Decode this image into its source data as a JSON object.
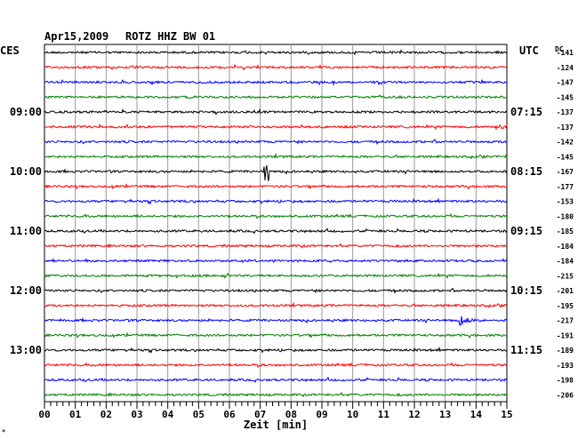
{
  "header": {
    "date": "Apr15,2009",
    "station": "ROTZ HHZ BW 01",
    "left_tz": "CES",
    "right_tz": "UTC",
    "dc_label": "DC"
  },
  "chart_data": {
    "type": "line",
    "title": "Apr15,2009  ROTZ HHZ BW 01",
    "xlabel": "Zeit [min]",
    "xlim": [
      0,
      15
    ],
    "x_ticks": [
      "00",
      "01",
      "02",
      "03",
      "04",
      "05",
      "06",
      "07",
      "08",
      "09",
      "10",
      "11",
      "12",
      "13",
      "14",
      "15"
    ],
    "trace_colors": [
      "#000000",
      "#ff0000",
      "#0000ff",
      "#008000"
    ],
    "left_time_labels": [
      {
        "trace": 4,
        "label": "09:00"
      },
      {
        "trace": 8,
        "label": "10:00"
      },
      {
        "trace": 12,
        "label": "11:00"
      },
      {
        "trace": 16,
        "label": "12:00"
      },
      {
        "trace": 20,
        "label": "13:00"
      }
    ],
    "right_time_labels": [
      {
        "trace": 4,
        "label": "07:15"
      },
      {
        "trace": 8,
        "label": "08:15"
      },
      {
        "trace": 12,
        "label": "09:15"
      },
      {
        "trace": 16,
        "label": "10:15"
      },
      {
        "trace": 20,
        "label": "11:15"
      }
    ],
    "dc_offsets": [
      -141,
      -124,
      -147,
      -145,
      -137,
      -137,
      -142,
      -145,
      -167,
      -177,
      -153,
      -180,
      -185,
      -184,
      -184,
      -215,
      -201,
      -195,
      -217,
      -191,
      -189,
      -193,
      -198,
      -206
    ],
    "events": [
      {
        "trace": 8,
        "minute": 7.2,
        "amplitude": "large"
      },
      {
        "trace": 18,
        "minute": 13.4,
        "amplitude": "very large"
      },
      {
        "trace": 5,
        "minute": 14.9,
        "amplitude": "small"
      }
    ]
  }
}
